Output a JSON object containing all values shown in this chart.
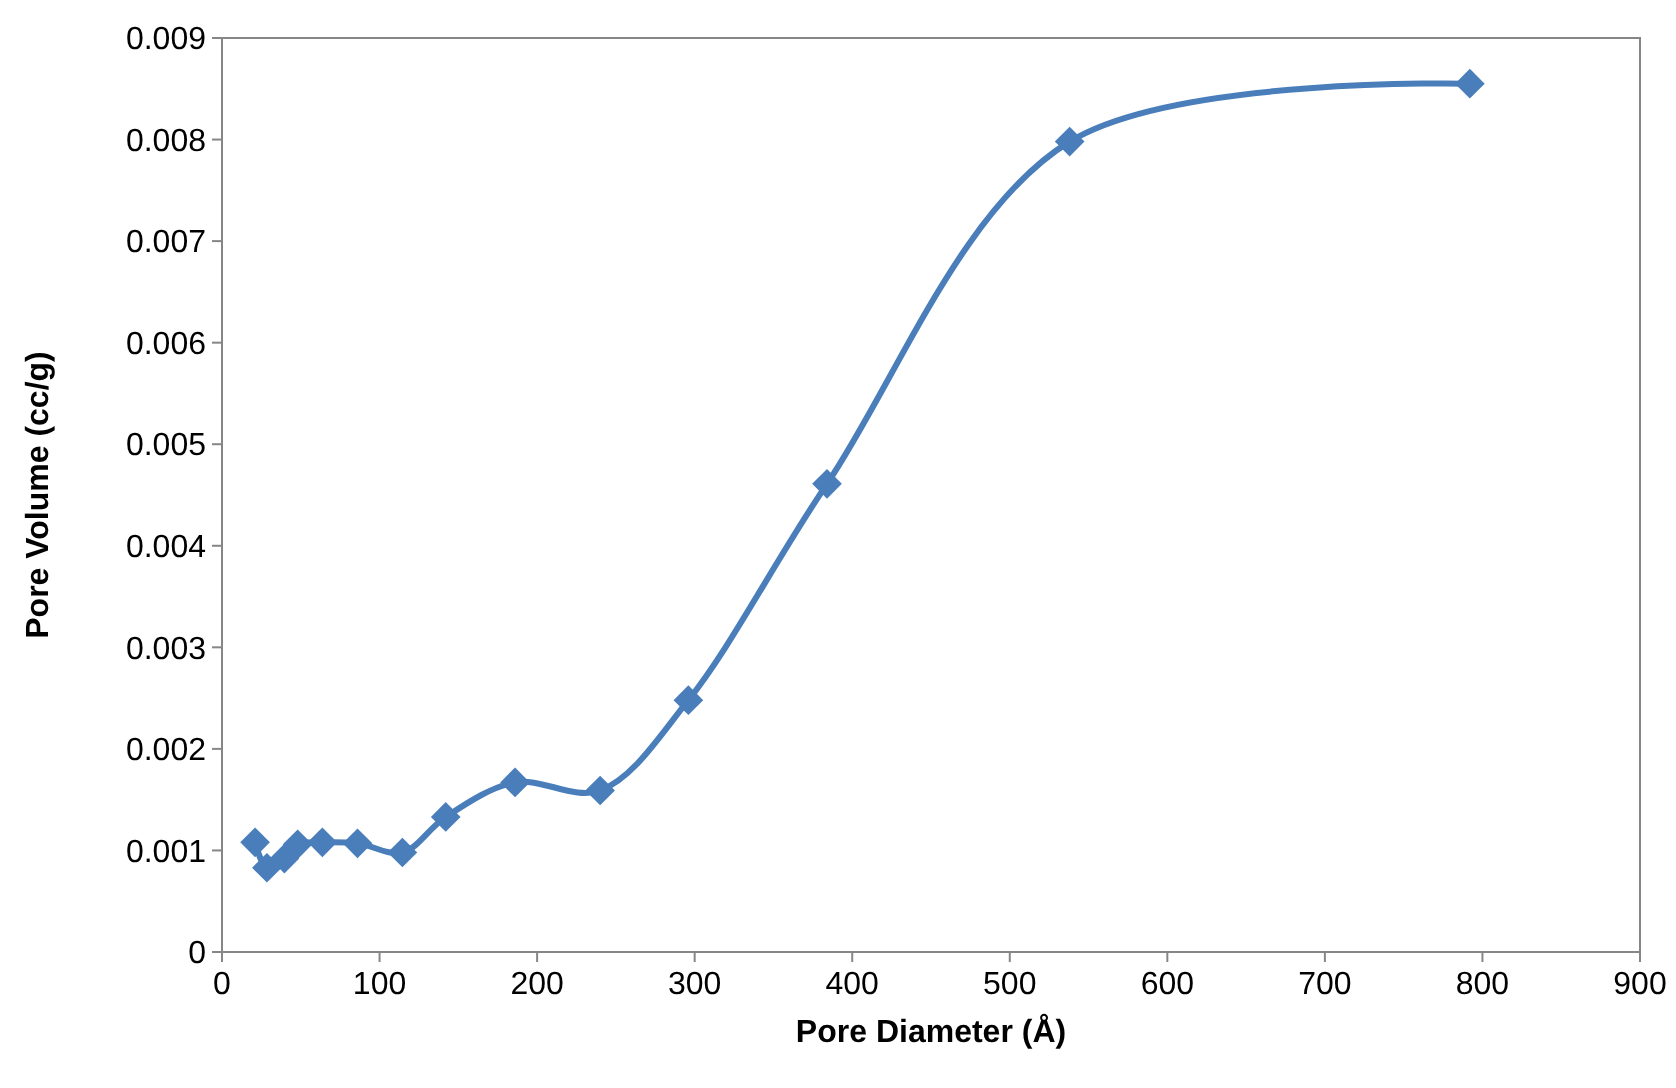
{
  "chart_data": {
    "type": "line",
    "xlabel": "Pore Diameter (Å)",
    "ylabel": "Pore Volume (cc/g)",
    "x": [
      21,
      28.5,
      39.6,
      48,
      63.7,
      86,
      114.5,
      142,
      186,
      240,
      296,
      384,
      538,
      792
    ],
    "series": [
      {
        "color": "#4a7ebb",
        "values": [
          0.00108,
          0.00083,
          0.00092,
          0.00106,
          0.00108,
          0.00107,
          0.00098,
          0.00133,
          0.00167,
          0.00159,
          0.00248,
          0.00461,
          0.00798,
          0.00855
        ]
      }
    ],
    "xlim": [
      0,
      900
    ],
    "xticks": [
      0,
      100,
      200,
      300,
      400,
      500,
      600,
      700,
      800,
      900
    ],
    "ylim": [
      0,
      0.009
    ],
    "yticks": [
      0,
      0.001,
      0.002,
      0.003,
      0.004,
      0.005,
      0.006,
      0.007,
      0.008,
      0.009
    ],
    "marker": "diamond",
    "line_style": "solid",
    "grid": false
  }
}
